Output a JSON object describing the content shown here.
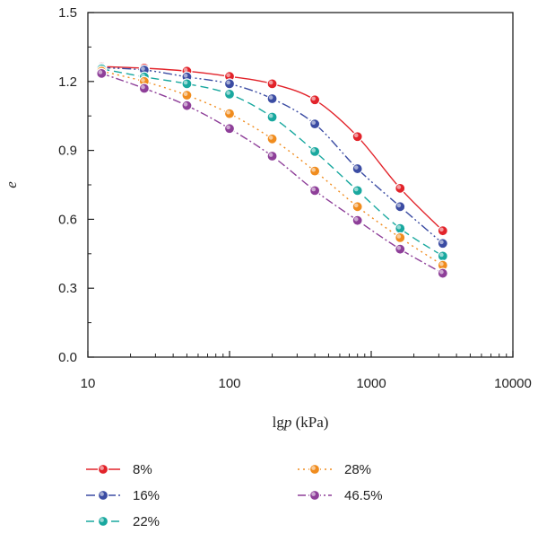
{
  "chart_data": {
    "type": "line",
    "xlabel_prefix": "lg",
    "xlabel_var": "p",
    "xlabel_unit": " (kPa)",
    "ylabel": "e",
    "x_scale": "log",
    "xlim": [
      10,
      10000
    ],
    "ylim": [
      0,
      1.5
    ],
    "x_ticks": [
      10,
      100,
      1000,
      10000
    ],
    "x_tick_labels": [
      "10",
      "100",
      "1000",
      "10000"
    ],
    "y_ticks": [
      0,
      0.3,
      0.6,
      0.9,
      1.2,
      1.5
    ],
    "y_tick_labels": [
      "0.0",
      "0.3",
      "0.6",
      "0.9",
      "1.2",
      "1.5"
    ],
    "grid": false,
    "legend_position": "bottom",
    "x": [
      12.5,
      25,
      50,
      100,
      200,
      400,
      800,
      1600,
      3200
    ],
    "series": [
      {
        "name": "8%",
        "color": "#e2232a",
        "dash": "",
        "values": [
          1.265,
          1.258,
          1.245,
          1.222,
          1.19,
          1.12,
          0.96,
          0.735,
          0.55
        ]
      },
      {
        "name": "16%",
        "color": "#3b4ca3",
        "dash": "10 3 2 3 2 3",
        "values": [
          1.26,
          1.25,
          1.22,
          1.19,
          1.125,
          1.015,
          0.82,
          0.655,
          0.495
        ]
      },
      {
        "name": "22%",
        "color": "#19a89f",
        "dash": "9 5",
        "values": [
          1.255,
          1.22,
          1.19,
          1.145,
          1.045,
          0.895,
          0.725,
          0.56,
          0.44
        ]
      },
      {
        "name": "28%",
        "color": "#f08c1e",
        "dash": "2 4",
        "values": [
          1.245,
          1.2,
          1.14,
          1.06,
          0.95,
          0.81,
          0.655,
          0.52,
          0.4
        ]
      },
      {
        "name": "46.5%",
        "color": "#8e3f99",
        "dash": "9 3 2 3",
        "values": [
          1.235,
          1.17,
          1.095,
          0.995,
          0.875,
          0.725,
          0.595,
          0.47,
          0.365
        ]
      }
    ]
  }
}
